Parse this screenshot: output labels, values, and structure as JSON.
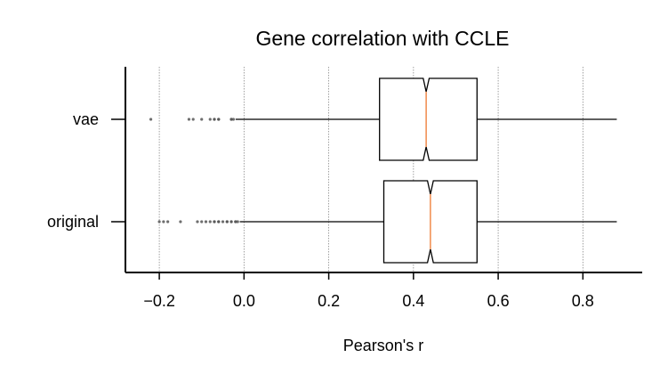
{
  "chart_data": {
    "type": "box",
    "orientation": "horizontal",
    "notched": true,
    "title": "Gene correlation with CCLE",
    "xlabel": "Pearson's r",
    "ylabel": "",
    "xlim": [
      -0.28,
      0.94
    ],
    "xticks": [
      -0.2,
      0.0,
      0.2,
      0.4,
      0.6,
      0.8
    ],
    "xtick_labels": [
      "−0.2",
      "0.0",
      "0.2",
      "0.4",
      "0.6",
      "0.8"
    ],
    "grid": "vertical dotted",
    "categories": [
      "vae",
      "original"
    ],
    "boxes": [
      {
        "label": "vae",
        "whisker_low": -0.02,
        "q1": 0.32,
        "median": 0.43,
        "q3": 0.55,
        "whisker_high": 0.88,
        "notch_low": 0.423,
        "notch_high": 0.437,
        "outliers": [
          -0.22,
          -0.13,
          -0.12,
          -0.1,
          -0.08,
          -0.07,
          -0.07,
          -0.06,
          -0.06,
          -0.03,
          -0.03,
          -0.025
        ]
      },
      {
        "label": "original",
        "whisker_low": -0.01,
        "q1": 0.33,
        "median": 0.44,
        "q3": 0.55,
        "whisker_high": 0.88,
        "notch_low": 0.433,
        "notch_high": 0.447,
        "outliers": [
          -0.2,
          -0.19,
          -0.18,
          -0.15,
          -0.11,
          -0.1,
          -0.09,
          -0.08,
          -0.07,
          -0.07,
          -0.06,
          -0.06,
          -0.05,
          -0.04,
          -0.04,
          -0.03,
          -0.03,
          -0.02,
          -0.02,
          -0.015
        ]
      }
    ],
    "colors": {
      "median": "#f08a4b",
      "box_edge": "#000000",
      "outlier": "#555555",
      "grid": "#888888"
    }
  }
}
